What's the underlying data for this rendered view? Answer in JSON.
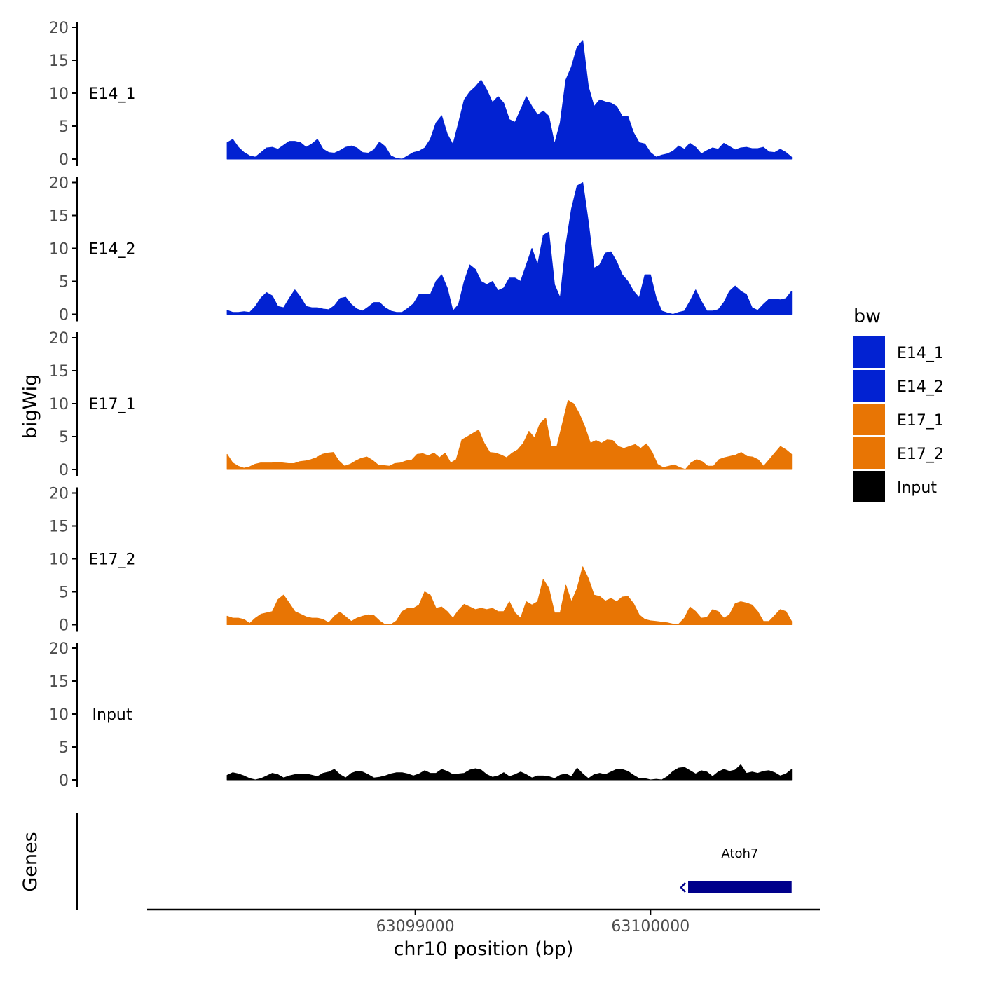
{
  "chart_data": {
    "type": "area",
    "title": "",
    "xlabel": "chr10 position (bp)",
    "y_axis_label": "bigWig",
    "genes_label": "Genes",
    "x_range": [
      63098200,
      63100600
    ],
    "xlim": [
      63097860,
      63100720
    ],
    "x_ticks": [
      63099000,
      63100000
    ],
    "x_tick_labels": [
      "63099000",
      "63100000"
    ],
    "ylim": [
      0,
      20
    ],
    "y_ticks": [
      0,
      5,
      10,
      15,
      20
    ],
    "y_tick_labels": [
      "0",
      "5",
      "10",
      "15",
      "20"
    ],
    "legend": {
      "title": "bw",
      "position": "right",
      "items": [
        {
          "label": "E14_1",
          "color": "#0222D2"
        },
        {
          "label": "E14_2",
          "color": "#0222D2"
        },
        {
          "label": "E17_1",
          "color": "#E87504"
        },
        {
          "label": "E17_2",
          "color": "#E87504"
        },
        {
          "label": "Input",
          "color": "#000000"
        }
      ]
    },
    "series": [
      {
        "name": "E14_1",
        "color": "#0222D2",
        "values": [
          2.5,
          3.0,
          1.8,
          1.0,
          0.5,
          0.3,
          1.0,
          1.7,
          1.8,
          1.5,
          2.1,
          2.7,
          2.7,
          2.5,
          1.8,
          2.3,
          3.0,
          1.5,
          1.0,
          0.9,
          1.3,
          1.8,
          2.0,
          1.7,
          1.0,
          0.9,
          1.4,
          2.6,
          1.9,
          0.5,
          0.1,
          0.0,
          0.5,
          1.0,
          1.2,
          1.7,
          3.0,
          5.5,
          6.6,
          3.8,
          2.2,
          5.5,
          9.0,
          10.2,
          11.0,
          12.0,
          10.5,
          8.6,
          9.5,
          8.5,
          6.0,
          5.6,
          7.5,
          9.5,
          8.0,
          6.7,
          7.3,
          6.5,
          2.3,
          5.5,
          12.0,
          14.0,
          17.0,
          18.0,
          11.0,
          8.0,
          9.0,
          8.7,
          8.5,
          8.0,
          6.5,
          6.5,
          4.0,
          2.5,
          2.3,
          1.0,
          0.3,
          0.6,
          0.8,
          1.2,
          2.0,
          1.5,
          2.4,
          1.8,
          0.8,
          1.3,
          1.7,
          1.5,
          2.4,
          1.9,
          1.4,
          1.7,
          1.8,
          1.6,
          1.6,
          1.8,
          1.1,
          1.0,
          1.5,
          1.0,
          0.3
        ]
      },
      {
        "name": "E14_2",
        "color": "#0222D2",
        "values": [
          0.6,
          0.3,
          0.3,
          0.4,
          0.3,
          1.2,
          2.5,
          3.3,
          2.8,
          1.2,
          1.0,
          2.4,
          3.7,
          2.6,
          1.2,
          1.0,
          1.0,
          0.8,
          0.7,
          1.3,
          2.4,
          2.6,
          1.5,
          0.8,
          0.5,
          1.1,
          1.8,
          1.8,
          1.0,
          0.5,
          0.3,
          0.3,
          0.9,
          1.6,
          3.0,
          3.0,
          3.0,
          5.0,
          6.0,
          4.0,
          0.5,
          1.5,
          5.0,
          7.5,
          6.8,
          5.0,
          4.5,
          5.0,
          3.6,
          4.0,
          5.5,
          5.5,
          5.0,
          7.5,
          10.0,
          7.5,
          12.0,
          12.5,
          4.5,
          2.5,
          10.5,
          16.0,
          19.5,
          20.0,
          14.0,
          7.0,
          7.5,
          9.3,
          9.5,
          8.0,
          6.0,
          5.0,
          3.5,
          2.5,
          6.0,
          6.0,
          2.5,
          0.5,
          0.2,
          0.0,
          0.3,
          0.5,
          2.0,
          3.7,
          2.0,
          0.5,
          0.5,
          0.7,
          1.8,
          3.5,
          4.3,
          3.5,
          3.0,
          1.0,
          0.6,
          1.5,
          2.3,
          2.3,
          2.2,
          2.4,
          3.5
        ]
      },
      {
        "name": "E17_1",
        "color": "#E87504",
        "values": [
          2.3,
          1.0,
          0.5,
          0.2,
          0.4,
          0.8,
          1.0,
          1.0,
          1.0,
          1.1,
          1.0,
          0.9,
          0.9,
          1.2,
          1.3,
          1.5,
          1.8,
          2.3,
          2.5,
          2.6,
          1.3,
          0.5,
          0.8,
          1.3,
          1.7,
          1.9,
          1.4,
          0.7,
          0.6,
          0.5,
          0.9,
          1.0,
          1.3,
          1.4,
          2.3,
          2.4,
          2.1,
          2.5,
          1.8,
          2.5,
          1.0,
          1.5,
          4.5,
          5.0,
          5.5,
          6.0,
          4.0,
          2.6,
          2.5,
          2.2,
          1.8,
          2.5,
          3.0,
          4.0,
          5.8,
          4.8,
          7.0,
          7.8,
          3.5,
          3.5,
          7.0,
          10.5,
          10.0,
          8.5,
          6.5,
          4.0,
          4.4,
          4.0,
          4.5,
          4.4,
          3.5,
          3.2,
          3.5,
          3.8,
          3.2,
          3.9,
          2.7,
          0.8,
          0.3,
          0.5,
          0.7,
          0.3,
          0.0,
          1.0,
          1.5,
          1.2,
          0.5,
          0.5,
          1.5,
          1.8,
          2.0,
          2.2,
          2.6,
          2.0,
          1.9,
          1.5,
          0.5,
          1.5,
          2.5,
          3.5,
          3.0,
          2.3
        ]
      },
      {
        "name": "E17_2",
        "color": "#E87504",
        "values": [
          1.3,
          1.0,
          1.0,
          0.8,
          0.2,
          1.0,
          1.6,
          1.8,
          2.0,
          3.8,
          4.5,
          3.3,
          2.0,
          1.6,
          1.2,
          1.0,
          1.0,
          0.8,
          0.3,
          1.3,
          1.9,
          1.2,
          0.5,
          1.0,
          1.3,
          1.5,
          1.4,
          0.6,
          0.0,
          0.0,
          0.6,
          2.0,
          2.5,
          2.5,
          3.0,
          5.0,
          4.5,
          2.5,
          2.7,
          2.0,
          1.0,
          2.2,
          3.1,
          2.7,
          2.3,
          2.5,
          2.3,
          2.5,
          2.0,
          2.0,
          3.5,
          1.8,
          1.0,
          3.5,
          3.0,
          3.5,
          6.9,
          5.5,
          1.8,
          1.8,
          6.0,
          3.5,
          5.5,
          8.8,
          7.0,
          4.5,
          4.3,
          3.6,
          4.0,
          3.5,
          4.2,
          4.3,
          3.2,
          1.5,
          0.8,
          0.6,
          0.5,
          0.4,
          0.3,
          0.1,
          0.1,
          1.0,
          2.7,
          2.0,
          1.0,
          1.1,
          2.3,
          2.0,
          1.0,
          1.5,
          3.2,
          3.5,
          3.3,
          3.0,
          2.0,
          0.5,
          0.5,
          1.4,
          2.3,
          2.0,
          0.5
        ]
      },
      {
        "name": "Input",
        "color": "#000000",
        "values": [
          0.7,
          1.1,
          0.9,
          0.6,
          0.2,
          0.0,
          0.2,
          0.6,
          1.0,
          0.8,
          0.3,
          0.6,
          0.8,
          0.8,
          0.9,
          0.7,
          0.5,
          1.0,
          1.2,
          1.6,
          0.8,
          0.3,
          1.0,
          1.3,
          1.2,
          0.8,
          0.3,
          0.4,
          0.6,
          0.9,
          1.1,
          1.1,
          0.9,
          0.6,
          0.9,
          1.4,
          1.0,
          1.0,
          1.6,
          1.3,
          0.8,
          0.9,
          1.0,
          1.5,
          1.7,
          1.5,
          0.8,
          0.4,
          0.6,
          1.1,
          0.5,
          0.8,
          1.2,
          0.8,
          0.3,
          0.6,
          0.6,
          0.5,
          0.2,
          0.7,
          0.9,
          0.5,
          1.8,
          0.9,
          0.2,
          0.8,
          1.0,
          0.8,
          1.2,
          1.6,
          1.6,
          1.3,
          0.7,
          0.2,
          0.2,
          0.0,
          0.1,
          0.0,
          0.5,
          1.3,
          1.8,
          1.9,
          1.4,
          0.9,
          1.4,
          1.2,
          0.5,
          1.2,
          1.6,
          1.3,
          1.5,
          2.3,
          1.0,
          1.2,
          1.0,
          1.3,
          1.4,
          1.1,
          0.6,
          0.9,
          1.6
        ]
      }
    ],
    "genes": [
      {
        "name": "Atoh7",
        "start": 63100160,
        "end": 63100600,
        "strand": "-",
        "color": "#00008B"
      }
    ]
  }
}
